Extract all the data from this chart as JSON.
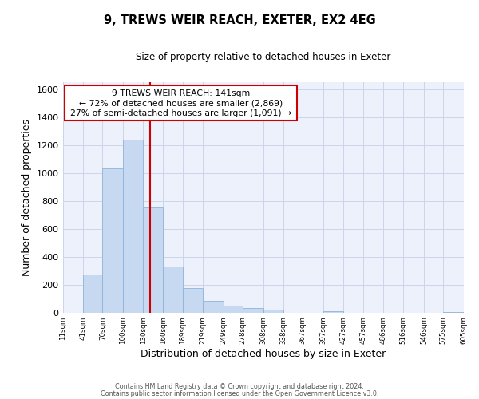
{
  "title": "9, TREWS WEIR REACH, EXETER, EX2 4EG",
  "subtitle": "Size of property relative to detached houses in Exeter",
  "xlabel": "Distribution of detached houses by size in Exeter",
  "ylabel": "Number of detached properties",
  "bar_edges": [
    11,
    41,
    70,
    100,
    130,
    160,
    189,
    219,
    249,
    278,
    308,
    338,
    367,
    397,
    427,
    457,
    486,
    516,
    546,
    575,
    605
  ],
  "bar_heights": [
    0,
    275,
    1030,
    1235,
    750,
    330,
    175,
    85,
    50,
    30,
    20,
    0,
    0,
    10,
    0,
    0,
    0,
    0,
    0,
    5
  ],
  "bar_color": "#c6d9f0",
  "bar_edgecolor": "#8db4d9",
  "vline_x": 141,
  "vline_color": "#cc0000",
  "ylim": [
    0,
    1650
  ],
  "xlim": [
    11,
    605
  ],
  "ann_line1": "9 TREWS WEIR REACH: 141sqm",
  "ann_line2": "← 72% of detached houses are smaller (2,869)",
  "ann_line3": "27% of semi-detached houses are larger (1,091) →",
  "footer_line1": "Contains HM Land Registry data © Crown copyright and database right 2024.",
  "footer_line2": "Contains public sector information licensed under the Open Government Licence v3.0.",
  "tick_labels": [
    "11sqm",
    "41sqm",
    "70sqm",
    "100sqm",
    "130sqm",
    "160sqm",
    "189sqm",
    "219sqm",
    "249sqm",
    "278sqm",
    "308sqm",
    "338sqm",
    "367sqm",
    "397sqm",
    "427sqm",
    "457sqm",
    "486sqm",
    "516sqm",
    "546sqm",
    "575sqm",
    "605sqm"
  ],
  "tick_positions": [
    11,
    41,
    70,
    100,
    130,
    160,
    189,
    219,
    249,
    278,
    308,
    338,
    367,
    397,
    427,
    457,
    486,
    516,
    546,
    575,
    605
  ],
  "ytick_values": [
    0,
    200,
    400,
    600,
    800,
    1000,
    1200,
    1400,
    1600
  ],
  "grid_color": "#cdd6e8",
  "background_color": "#edf1fb"
}
